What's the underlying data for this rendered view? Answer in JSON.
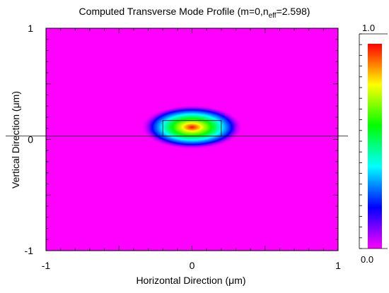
{
  "chart_data": {
    "type": "heatmap",
    "title_prefix": "Computed Transverse Mode Profile (m=0,n",
    "title_sub": "eff",
    "title_suffix": "=2.598)",
    "xlabel": "Horizontal Direction (μm)",
    "ylabel": "Vertical Direction (μm)",
    "xlim": [
      -1,
      1
    ],
    "ylim": [
      -1,
      1
    ],
    "x_ticks": [
      "-1",
      "0",
      "1"
    ],
    "y_ticks": [
      "1",
      "0",
      "-1"
    ],
    "colorbar": {
      "min_label": "0.0",
      "max_label": "1.0",
      "range": [
        0,
        1
      ],
      "colors": [
        "#ff00ff",
        "#0000ff",
        "#00ffff",
        "#00ff00",
        "#ffff00",
        "#ff0000"
      ]
    },
    "mode_field": {
      "peak_value": 1.0,
      "center": [
        0.0,
        0.11
      ],
      "half_width_x": 0.35,
      "half_width_y": 0.2
    },
    "waveguide_core": {
      "x": [
        -0.2,
        0.2
      ],
      "y": [
        0.03,
        0.17
      ]
    },
    "reference_line_y": 0.03,
    "background_color": "#ff00ff"
  }
}
